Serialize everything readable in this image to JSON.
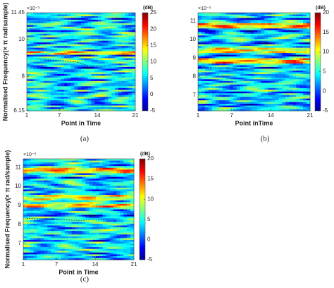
{
  "chart_data": [
    {
      "type": "heatmap",
      "caption": "(a)",
      "x_label": "Point in Time",
      "y_label": "Normalised Frequency(× π rad/sample)",
      "exponent": "×10⁻³",
      "xlim": [
        1,
        21
      ],
      "xticks": [
        1,
        7,
        14,
        21
      ],
      "ylim": [
        6.15,
        11.45
      ],
      "yticks": [
        6.15,
        8,
        10,
        11.45
      ],
      "colorbar_label": "(dB)",
      "clim": [
        -5,
        25
      ],
      "cticks": [
        -5,
        0,
        5,
        10,
        15,
        20,
        25
      ],
      "colormap": "jet"
    },
    {
      "type": "heatmap",
      "caption": "(b)",
      "x_label": "Point inTime",
      "exponent": "×10⁻³",
      "xlim": [
        1,
        21
      ],
      "xticks": [
        1,
        7,
        14,
        21
      ],
      "ylim": [
        6.15,
        11.45
      ],
      "yticks": [
        7,
        8,
        9,
        10,
        11
      ],
      "colorbar_label": "(dB)",
      "clim": [
        -5,
        20
      ],
      "cticks": [
        -5,
        0,
        5,
        10,
        15,
        20
      ],
      "colormap": "jet"
    },
    {
      "type": "heatmap",
      "caption": "(c)",
      "x_label": "Point in Time",
      "y_label": "Normalised Frequency(× π rad/sample)",
      "exponent": "×10⁻³",
      "xlim": [
        1,
        21
      ],
      "xticks": [
        1,
        7,
        14,
        21
      ],
      "ylim": [
        6.15,
        11.45
      ],
      "yticks": [
        7,
        8,
        9,
        10,
        11
      ],
      "colorbar_label": "(dB)",
      "clim": [
        -5,
        20
      ],
      "cticks": [
        -5,
        0,
        5,
        10,
        15,
        20
      ],
      "colormap": "jet"
    }
  ]
}
